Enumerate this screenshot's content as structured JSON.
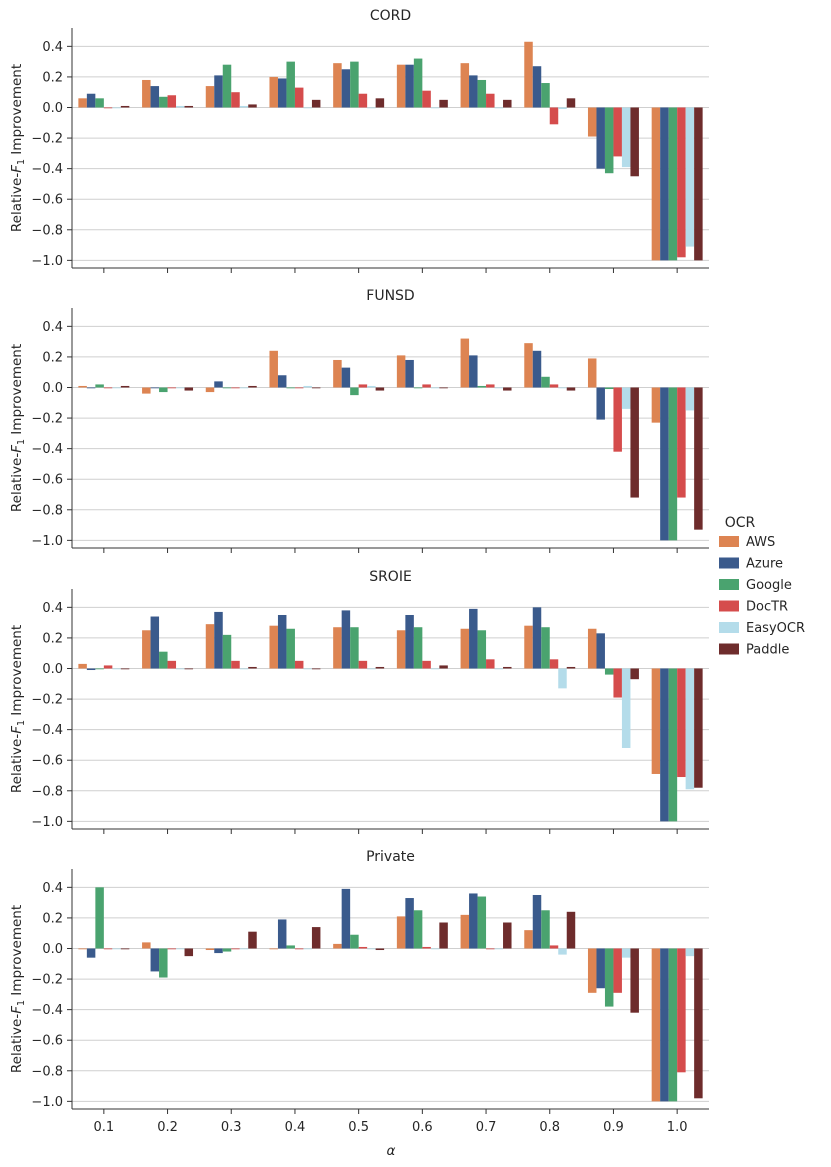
{
  "chart_data": {
    "type": "bar",
    "categories": [
      "0.1",
      "0.2",
      "0.3",
      "0.4",
      "0.5",
      "0.6",
      "0.7",
      "0.8",
      "0.9",
      "1.0"
    ],
    "xlabel": "α",
    "ylabel_prefix": "Relative-",
    "ylabel_var": "F",
    "ylabel_sub": "1",
    "ylabel_suffix": " Improvement",
    "ylim": [
      -1.05,
      0.52
    ],
    "yticks": [
      0.4,
      0.2,
      0.0,
      -0.2,
      -0.4,
      -0.6,
      -0.8,
      -1.0
    ],
    "ytick_labels": [
      "0.4",
      "0.2",
      "0.0",
      "−0.2",
      "−0.4",
      "−0.6",
      "−0.8",
      "−1.0"
    ],
    "grid": "horizontal",
    "legend": {
      "title": "OCR",
      "placement": "right",
      "entries": [
        {
          "name": "AWS",
          "color": "#dd8452"
        },
        {
          "name": "Azure",
          "color": "#3a5a8c"
        },
        {
          "name": "Google",
          "color": "#4aa36f"
        },
        {
          "name": "DocTR",
          "color": "#d54c4c"
        },
        {
          "name": "EasyOCR",
          "color": "#b4dcea"
        },
        {
          "name": "Paddle",
          "color": "#6e2c2c"
        }
      ]
    },
    "panels": [
      {
        "title": "CORD",
        "series": [
          {
            "name": "AWS",
            "values": [
              0.06,
              0.18,
              0.14,
              0.2,
              0.29,
              0.28,
              0.29,
              0.43,
              -0.19,
              -1.0
            ]
          },
          {
            "name": "Azure",
            "values": [
              0.09,
              0.14,
              0.21,
              0.19,
              0.25,
              0.28,
              0.21,
              0.27,
              -0.4,
              -1.0
            ]
          },
          {
            "name": "Google",
            "values": [
              0.06,
              0.07,
              0.28,
              0.3,
              0.3,
              0.32,
              0.18,
              0.16,
              -0.43,
              -1.0
            ]
          },
          {
            "name": "DocTR",
            "values": [
              0.0,
              0.08,
              0.1,
              0.13,
              0.09,
              0.11,
              0.09,
              -0.11,
              -0.32,
              -0.98
            ]
          },
          {
            "name": "EasyOCR",
            "values": [
              0.0,
              0.01,
              0.01,
              0.0,
              0.0,
              0.0,
              0.0,
              -0.01,
              -0.39,
              -0.91
            ]
          },
          {
            "name": "Paddle",
            "values": [
              0.01,
              0.01,
              0.02,
              0.05,
              0.06,
              0.05,
              0.05,
              0.06,
              -0.45,
              -1.0
            ]
          }
        ]
      },
      {
        "title": "FUNSD",
        "series": [
          {
            "name": "AWS",
            "values": [
              0.01,
              -0.04,
              -0.03,
              0.24,
              0.18,
              0.21,
              0.32,
              0.29,
              0.19,
              -0.23
            ]
          },
          {
            "name": "Azure",
            "values": [
              0.0,
              0.0,
              0.04,
              0.08,
              0.13,
              0.18,
              0.21,
              0.24,
              -0.21,
              -1.0
            ]
          },
          {
            "name": "Google",
            "values": [
              0.02,
              -0.03,
              0.0,
              0.0,
              -0.05,
              0.0,
              0.01,
              0.07,
              -0.01,
              -1.0
            ]
          },
          {
            "name": "DocTR",
            "values": [
              0.0,
              0.0,
              0.0,
              0.0,
              0.02,
              0.02,
              0.02,
              0.02,
              -0.42,
              -0.72
            ]
          },
          {
            "name": "EasyOCR",
            "values": [
              0.0,
              0.0,
              0.0,
              0.01,
              0.01,
              0.0,
              0.0,
              0.0,
              -0.14,
              -0.15
            ]
          },
          {
            "name": "Paddle",
            "values": [
              0.01,
              -0.02,
              0.01,
              0.0,
              -0.02,
              0.0,
              -0.02,
              -0.02,
              -0.72,
              -0.93
            ]
          }
        ]
      },
      {
        "title": "SROIE",
        "series": [
          {
            "name": "AWS",
            "values": [
              0.03,
              0.25,
              0.29,
              0.28,
              0.27,
              0.25,
              0.26,
              0.28,
              0.26,
              -0.69
            ]
          },
          {
            "name": "Azure",
            "values": [
              -0.01,
              0.34,
              0.37,
              0.35,
              0.38,
              0.35,
              0.39,
              0.4,
              0.23,
              -1.0
            ]
          },
          {
            "name": "Google",
            "values": [
              0.0,
              0.11,
              0.22,
              0.26,
              0.27,
              0.27,
              0.25,
              0.27,
              -0.04,
              -1.0
            ]
          },
          {
            "name": "DocTR",
            "values": [
              0.02,
              0.05,
              0.05,
              0.05,
              0.05,
              0.05,
              0.06,
              0.06,
              -0.19,
              -0.71
            ]
          },
          {
            "name": "EasyOCR",
            "values": [
              0.0,
              0.0,
              0.0,
              0.0,
              0.0,
              0.0,
              0.0,
              -0.13,
              -0.52,
              -0.79
            ]
          },
          {
            "name": "Paddle",
            "values": [
              0.0,
              0.0,
              0.01,
              0.0,
              0.01,
              0.02,
              0.01,
              0.01,
              -0.07,
              -0.78
            ]
          }
        ]
      },
      {
        "title": "Private",
        "series": [
          {
            "name": "AWS",
            "values": [
              0.0,
              0.04,
              -0.01,
              0.0,
              0.03,
              0.21,
              0.22,
              0.12,
              -0.29,
              -1.0
            ]
          },
          {
            "name": "Azure",
            "values": [
              -0.06,
              -0.15,
              -0.03,
              0.19,
              0.39,
              0.33,
              0.36,
              0.35,
              -0.26,
              -1.0
            ]
          },
          {
            "name": "Google",
            "values": [
              0.4,
              -0.19,
              -0.02,
              0.02,
              0.09,
              0.25,
              0.34,
              0.25,
              -0.38,
              -1.0
            ]
          },
          {
            "name": "DocTR",
            "values": [
              0.0,
              0.0,
              0.0,
              0.0,
              0.01,
              0.01,
              0.0,
              0.02,
              -0.29,
              -0.81
            ]
          },
          {
            "name": "EasyOCR",
            "values": [
              0.0,
              0.0,
              0.0,
              0.0,
              0.0,
              0.0,
              0.0,
              -0.04,
              -0.06,
              -0.05
            ]
          },
          {
            "name": "Paddle",
            "values": [
              0.0,
              -0.05,
              0.11,
              0.14,
              -0.01,
              0.17,
              0.17,
              0.24,
              -0.42,
              -0.98
            ]
          }
        ]
      }
    ]
  }
}
